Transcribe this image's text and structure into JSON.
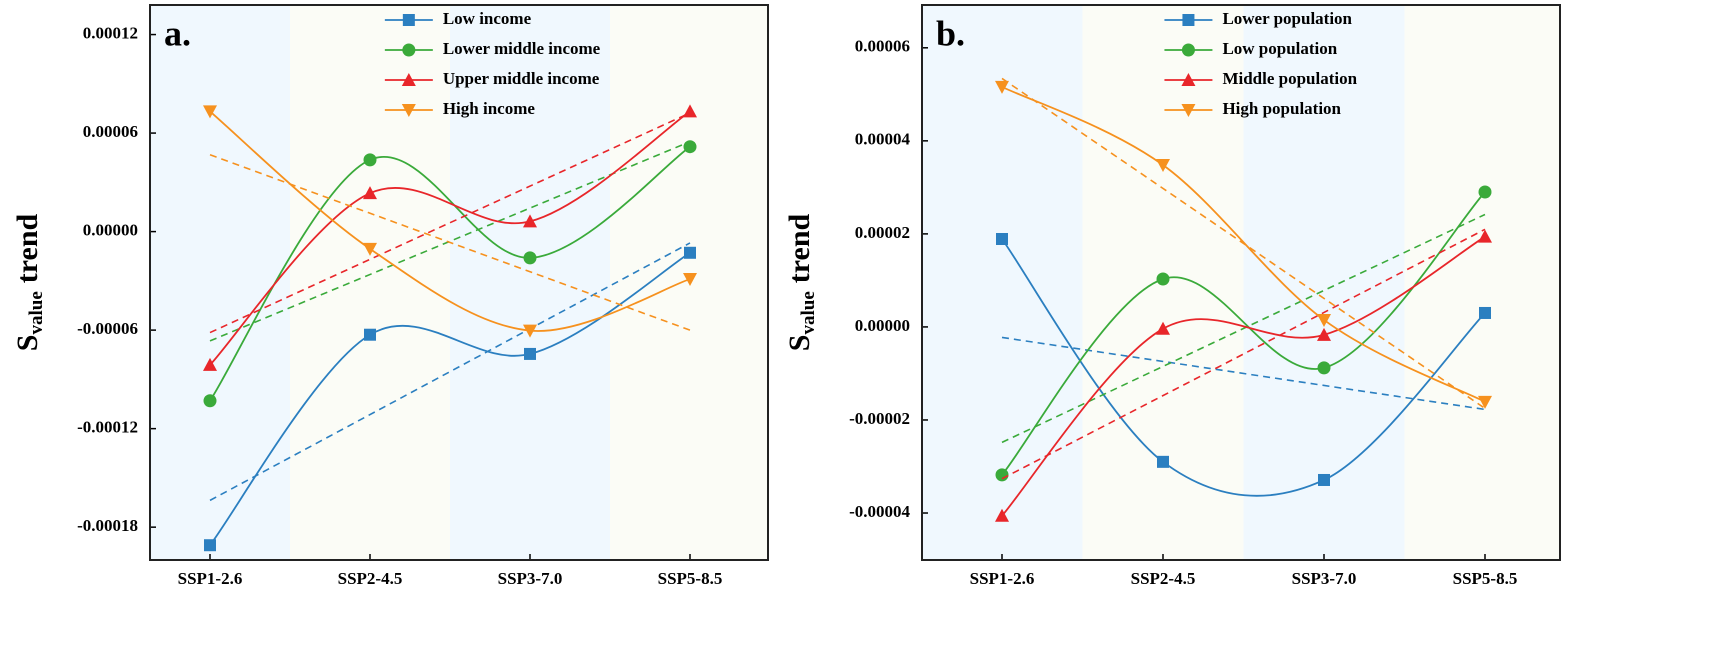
{
  "chart_data": [
    {
      "type": "line",
      "panel_label": "a.",
      "y_label": "S",
      "y_label_sub": "value",
      "y_label_rest": "trend",
      "categories": [
        "SSP1-2.6",
        "SSP2-4.5",
        "SSP3-7.0",
        "SSP5-8.5"
      ],
      "ylim": [
        -0.0002,
        0.000138
      ],
      "yticks": [
        -0.00018,
        -0.00012,
        -6e-05,
        {
          "value": 0,
          "label": "0.00000"
        },
        6e-05,
        0.00012
      ],
      "smooth": true,
      "trendline": true,
      "shaded_categories": [
        0,
        2
      ],
      "shade_color": "#f0f8fe",
      "background": "#fbfcf6",
      "series": [
        {
          "name": "Low income",
          "color": "#2b7fc0",
          "marker": "square",
          "values": [
            -0.000191,
            -6.28e-05,
            -7.45e-05,
            -1.29e-05
          ]
        },
        {
          "name": "Lower middle income",
          "color": "#3aaa3a",
          "marker": "circle",
          "values": [
            -0.000103,
            4.37e-05,
            -1.6e-05,
            5.17e-05
          ]
        },
        {
          "name": "Upper middle income",
          "color": "#e8262a",
          "marker": "triangle-up",
          "values": [
            -8.12e-05,
            2.34e-05,
            6.2e-06,
            7.32e-05
          ]
        },
        {
          "name": "High income",
          "color": "#f6911e",
          "marker": "triangle-down",
          "values": [
            7.32e-05,
            -1.05e-05,
            -6.03e-05,
            -2.89e-05
          ]
        }
      ]
    },
    {
      "type": "line",
      "panel_label": "b.",
      "y_label": "S",
      "y_label_sub": "value",
      "y_label_rest": "trend",
      "categories": [
        "SSP1-2.6",
        "SSP2-4.5",
        "SSP3-7.0",
        "SSP5-8.5"
      ],
      "ylim": [
        -5.01e-05,
        6.92e-05
      ],
      "yticks": [
        -4e-05,
        -2e-05,
        {
          "value": 0,
          "label": "0.00000"
        },
        2e-05,
        4e-05,
        6e-05
      ],
      "smooth": true,
      "trendline": true,
      "shaded_categories": [
        0,
        2
      ],
      "shade_color": "#f0f8fe",
      "background": "#fbfcf6",
      "series": [
        {
          "name": "Lower population",
          "color": "#2b7fc0",
          "marker": "square",
          "values": [
            1.89e-05,
            -2.9e-05,
            -3.29e-05,
            3e-06
          ]
        },
        {
          "name": "Low population",
          "color": "#3aaa3a",
          "marker": "circle",
          "values": [
            -3.18e-05,
            1.03e-05,
            -8.8e-06,
            2.9e-05
          ]
        },
        {
          "name": "Middle population",
          "color": "#e8262a",
          "marker": "triangle-up",
          "values": [
            -4.06e-05,
            -4e-07,
            -1.7e-06,
            1.94e-05
          ]
        },
        {
          "name": "High population",
          "color": "#f6911e",
          "marker": "triangle-down",
          "values": [
            5.16e-05,
            3.48e-05,
            1.5e-06,
            -1.61e-05
          ]
        }
      ]
    }
  ]
}
